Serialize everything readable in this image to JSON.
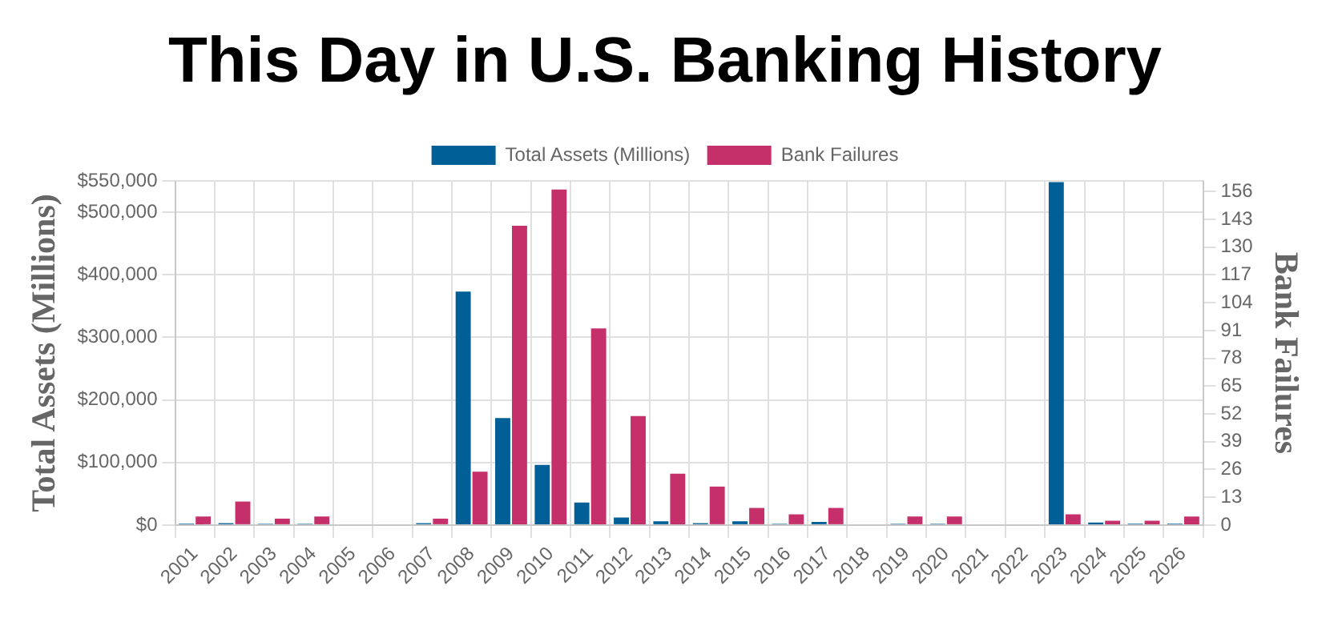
{
  "chart_data": {
    "type": "bar",
    "title": "This Day in U.S. Banking History",
    "ylabel": "Total Assets (Millions)",
    "y2label": "Bank Failures",
    "categories": [
      "2001",
      "2002",
      "2003",
      "2004",
      "2005",
      "2006",
      "2007",
      "2008",
      "2009",
      "2010",
      "2011",
      "2012",
      "2013",
      "2014",
      "2015",
      "2016",
      "2017",
      "2018",
      "2019",
      "2020",
      "2021",
      "2022",
      "2023",
      "2024",
      "2025",
      "2026"
    ],
    "series": [
      {
        "name": "Total Assets (Millions)",
        "color": "#005f96",
        "values": [
          2000,
          3000,
          2000,
          2000,
          0,
          0,
          3000,
          373000,
          171000,
          96000,
          36000,
          12000,
          6000,
          3000,
          6000,
          2000,
          5000,
          0,
          2000,
          2000,
          0,
          0,
          548000,
          4000,
          2000,
          2000
        ]
      },
      {
        "name": "Bank Failures",
        "color": "#c5306b",
        "axis": "y2",
        "values": [
          4,
          11,
          3,
          4,
          0,
          0,
          3,
          25,
          140,
          157,
          92,
          51,
          24,
          18,
          8,
          5,
          8,
          0,
          4,
          4,
          0,
          0,
          5,
          2,
          2,
          4
        ]
      }
    ],
    "ylim": [
      0,
      550000
    ],
    "yticks": [
      {
        "value": 0,
        "label": "$0"
      },
      {
        "value": 100000,
        "label": "$100,000"
      },
      {
        "value": 200000,
        "label": "$200,000"
      },
      {
        "value": 300000,
        "label": "$300,000"
      },
      {
        "value": 400000,
        "label": "$400,000"
      },
      {
        "value": 500000,
        "label": "$500,000"
      },
      {
        "value": 550000,
        "label": "$550,000"
      }
    ],
    "y2lim": [
      0,
      161
    ],
    "y2ticks": [
      0,
      13,
      26,
      39,
      52,
      65,
      78,
      91,
      104,
      117,
      130,
      143,
      156
    ],
    "grid": true,
    "legend": "top"
  }
}
